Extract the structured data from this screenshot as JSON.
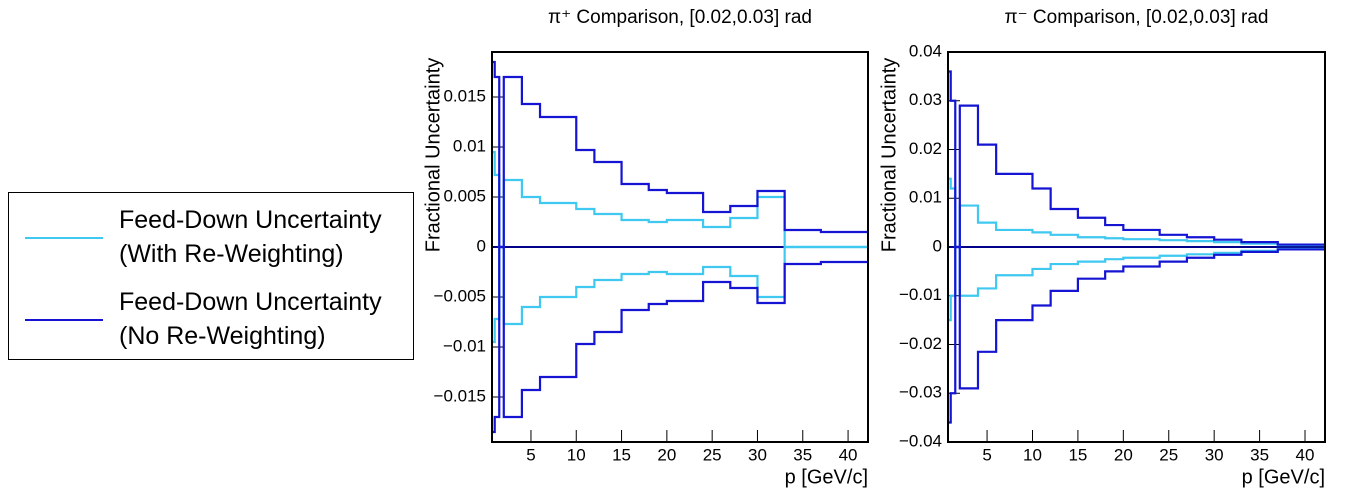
{
  "chart_data": [
    {
      "type": "histogram",
      "title": "π⁺ Comparison, [0.02,0.03] rad",
      "y_label": "Fractional Uncertainty",
      "x_label": "p [GeV/c]",
      "bins": [
        0.7,
        1,
        1.5,
        2,
        4,
        6,
        10,
        12,
        15,
        18,
        20,
        24,
        27,
        30,
        33,
        37,
        42.2
      ],
      "xlim": [
        0.7,
        42.2
      ],
      "xticks": [
        5,
        10,
        15,
        20,
        25,
        30,
        35,
        40
      ],
      "ylim": [
        -0.0195,
        0.0195
      ],
      "yticks": [
        {
          "value": -0.015,
          "label": "−0.015"
        },
        {
          "value": -0.01,
          "label": "−0.01"
        },
        {
          "value": -0.005,
          "label": "−0.005"
        },
        0,
        0.005,
        0.01,
        0.015
      ],
      "series": [
        {
          "name": "Feed-Down Uncertainty\n(With Re-Weighting)",
          "color": "#3fc8f0",
          "values": [
            0.0095,
            0.0072,
            0.0,
            0.0067,
            0.005,
            0.0044,
            0.0038,
            0.0033,
            0.0027,
            0.0025,
            0.0027,
            0.002,
            0.0029,
            0.005,
            0.0,
            0.0
          ],
          "lower": [
            -0.0095,
            -0.0072,
            0.0,
            -0.0077,
            -0.006,
            -0.005,
            -0.004,
            -0.0033,
            -0.0027,
            -0.0025,
            -0.0027,
            -0.002,
            -0.0029,
            -0.005,
            0.0,
            0.0
          ]
        },
        {
          "name": "Feed-Down Uncertainty\n(No Re-Weighting)",
          "color": "#1414d2",
          "values": [
            0.0185,
            0.017,
            0.0,
            0.017,
            0.0143,
            0.013,
            0.0097,
            0.0085,
            0.0063,
            0.0057,
            0.0054,
            0.0035,
            0.0041,
            0.0056,
            0.0017,
            0.0015
          ],
          "lower": [
            -0.0185,
            -0.017,
            0.0,
            -0.017,
            -0.0143,
            -0.013,
            -0.0097,
            -0.0085,
            -0.0063,
            -0.0057,
            -0.0054,
            -0.0035,
            -0.0041,
            -0.0056,
            -0.0017,
            -0.0015
          ]
        }
      ]
    },
    {
      "type": "histogram",
      "title": "π⁻ Comparison, [0.02,0.03] rad",
      "y_label": "Fractional Uncertainty",
      "x_label": "p [GeV/c]",
      "bins": [
        0.7,
        1,
        1.5,
        2,
        4,
        6,
        10,
        12,
        15,
        18,
        20,
        24,
        27,
        30,
        33,
        37,
        42.2
      ],
      "xlim": [
        0.7,
        42.2
      ],
      "xticks": [
        5,
        10,
        15,
        20,
        25,
        30,
        35,
        40
      ],
      "ylim": [
        -0.04,
        0.04
      ],
      "yticks": [
        {
          "value": -0.04,
          "label": "−0.04"
        },
        {
          "value": -0.03,
          "label": "−0.03"
        },
        {
          "value": -0.02,
          "label": "−0.02"
        },
        {
          "value": -0.01,
          "label": "−0.01"
        },
        0,
        0.01,
        0.02,
        0.03,
        0.04
      ],
      "series": [
        {
          "name": "Feed-Down Uncertainty\n(With Re-Weighting)",
          "color": "#3fc8f0",
          "values": [
            0.014,
            0.012,
            0.0,
            0.0085,
            0.005,
            0.0035,
            0.003,
            0.0025,
            0.002,
            0.0018,
            0.0016,
            0.0014,
            0.0012,
            0.001,
            0.0007,
            0.0004
          ],
          "lower": [
            -0.015,
            -0.01,
            0.0,
            -0.01,
            -0.0085,
            -0.0058,
            -0.0045,
            -0.0035,
            -0.003,
            -0.0025,
            -0.0022,
            -0.0018,
            -0.0015,
            -0.0012,
            -0.0008,
            -0.0004
          ]
        },
        {
          "name": "Feed-Down Uncertainty\n(No Re-Weighting)",
          "color": "#1414d2",
          "values": [
            0.036,
            0.03,
            0.0,
            0.029,
            0.021,
            0.015,
            0.012,
            0.0078,
            0.006,
            0.0045,
            0.0035,
            0.0025,
            0.002,
            0.0015,
            0.001,
            0.0005
          ],
          "lower": [
            -0.036,
            -0.03,
            0.0,
            -0.029,
            -0.0215,
            -0.015,
            -0.012,
            -0.009,
            -0.0065,
            -0.005,
            -0.004,
            -0.003,
            -0.0022,
            -0.0016,
            -0.001,
            -0.0005
          ]
        }
      ]
    }
  ]
}
